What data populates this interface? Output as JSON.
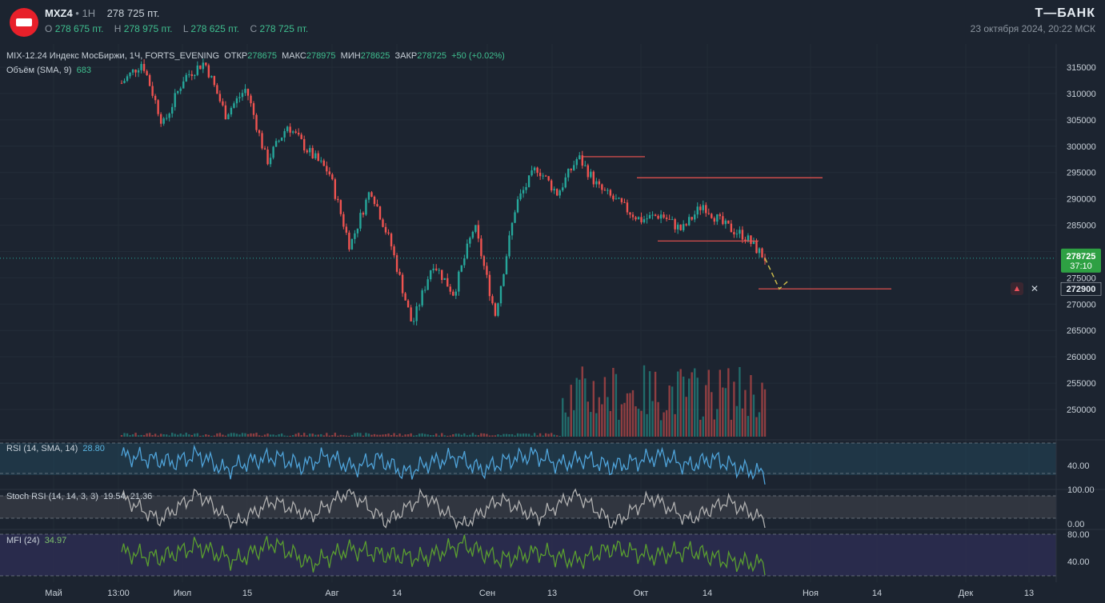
{
  "header": {
    "symbol": "MXZ4",
    "interval": "1H",
    "last_price": "278 725 пт.",
    "ohlc": {
      "o_label": "O",
      "o_value": "278 675 пт.",
      "h_label": "H",
      "h_value": "278 975 пт.",
      "l_label": "L",
      "l_value": "278 625 пт.",
      "c_label": "C",
      "c_value": "278 725 пт."
    },
    "brand": "Т—БАНК",
    "datetime": "23 октября 2024, 20:22 МСК"
  },
  "legend": {
    "instrument": "MIX-12.24 Индекс МосБиржи, 1Ч, FORTS_EVENING",
    "open_label": "ОТКР",
    "open_value": "278675",
    "high_label": "МАКС",
    "high_value": "278975",
    "low_label": "МИН",
    "low_value": "278625",
    "close_label": "ЗАКР",
    "close_value": "278725",
    "change": "+50 (+0.02%)",
    "volume_label": "Объём (SMA, 9)",
    "volume_value": "683"
  },
  "indicators": {
    "rsi_label": "RSI (14, SMA, 14)",
    "rsi_value": "28.80",
    "stoch_label": "Stoch RSI (14, 14, 3, 3)",
    "stoch_k": "19.54",
    "stoch_d": "21.36",
    "mfi_label": "MFI (24)",
    "mfi_value": "34.97"
  },
  "price_tag": {
    "price": "278725",
    "countdown": "37:10"
  },
  "alert_tag": {
    "price": "272900"
  },
  "icons": {
    "alert": "bell-icon",
    "close": "close-icon",
    "logo": "tbank-logo"
  },
  "colors": {
    "up": "#26a69a",
    "down": "#ef5350",
    "rsi": "#4fa3d9",
    "stoch": "#b0b0b0",
    "mfi": "#5a9e2f",
    "accent": "#2ea043"
  },
  "chart_data": {
    "type": "candlestick",
    "price_axis_ticks": [
      "315000",
      "310000",
      "305000",
      "300000",
      "295000",
      "290000",
      "285000",
      "280000",
      "275000",
      "270000",
      "265000",
      "260000",
      "255000",
      "250000"
    ],
    "x_ticks": [
      "Май",
      "13:00",
      "Июл",
      "15",
      "Авг",
      "14",
      "Сен",
      "13",
      "Окт",
      "14",
      "Ноя",
      "14",
      "Дек",
      "13"
    ],
    "rsi_ticks": [
      "40.00"
    ],
    "stoch_ticks": [
      "100.00",
      "0.00"
    ],
    "mfi_ticks": [
      "80.00",
      "40.00"
    ],
    "ylim": [
      245000,
      318000
    ],
    "series": [
      {
        "name": "price_path",
        "values": [
          312000,
          316000,
          304000,
          313000,
          316000,
          306000,
          311000,
          297000,
          304000,
          299000,
          295000,
          281000,
          292000,
          281000,
          266000,
          278000,
          272000,
          285000,
          268000,
          289000,
          296000,
          291000,
          298000,
          292000,
          289000,
          286000,
          287000,
          284000,
          289000,
          285000,
          283000,
          278725
        ]
      },
      {
        "name": "rsi",
        "values": [
          60,
          55,
          48,
          62,
          35,
          50,
          58,
          42,
          60,
          38,
          55,
          30,
          48,
          58,
          35,
          52,
          62,
          45,
          55,
          40,
          50,
          60,
          42,
          55,
          38,
          28.8
        ]
      },
      {
        "name": "stoch",
        "values": [
          80,
          20,
          90,
          10,
          70,
          30,
          95,
          15,
          85,
          5,
          75,
          25,
          90,
          10,
          80,
          20,
          70,
          19.54
        ]
      },
      {
        "name": "mfi",
        "values": [
          55,
          45,
          65,
          40,
          70,
          35,
          60,
          50,
          45,
          68,
          42,
          55,
          40,
          62,
          48,
          58,
          40,
          34.97
        ]
      }
    ],
    "levels": [
      {
        "label": "resistance_1",
        "value": 298000
      },
      {
        "label": "resistance_2",
        "value": 294000
      },
      {
        "label": "support",
        "value": 282000
      },
      {
        "label": "alert",
        "value": 272900
      }
    ]
  }
}
